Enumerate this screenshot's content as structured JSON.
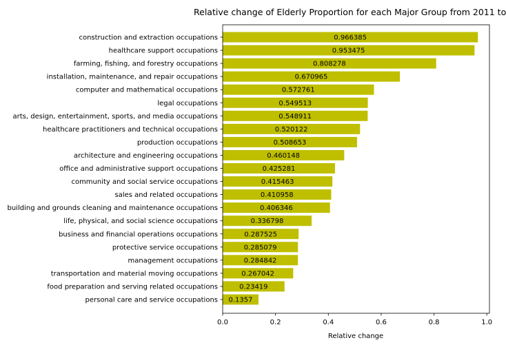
{
  "chart_data": {
    "type": "bar",
    "orientation": "horizontal",
    "title": "Relative change of Elderly Proportion for each Major Group from 2011 to",
    "xlabel": "Relative change",
    "ylabel": "",
    "xlim": [
      0,
      1.01
    ],
    "xticks": [
      0.0,
      0.2,
      0.4,
      0.6,
      0.8,
      1.0
    ],
    "xtick_labels": [
      "0.0",
      "0.2",
      "0.4",
      "0.6",
      "0.8",
      "1.0"
    ],
    "grid": false,
    "bar_color": "#bfbf00",
    "categories": [
      "construction and extraction occupations",
      "healthcare support occupations",
      "farming, fishing, and forestry occupations",
      "installation, maintenance, and repair occupations",
      "computer and mathematical occupations",
      "legal occupations",
      "arts, design, entertainment, sports, and media occupations",
      "healthcare practitioners and technical occupations",
      "production occupations",
      "architecture and engineering occupations",
      "office and administrative support occupations",
      "community and social service occupations",
      "sales and related occupations",
      "building and grounds cleaning and maintenance occupations",
      "life, physical, and social science occupations",
      "business and financial operations occupations",
      "protective service occupations",
      "management occupations",
      "transportation and material moving occupations",
      "food preparation and serving related occupations",
      "personal care and service occupations"
    ],
    "values": [
      0.966385,
      0.953475,
      0.808278,
      0.670965,
      0.572761,
      0.549513,
      0.548911,
      0.520122,
      0.508653,
      0.460148,
      0.425281,
      0.415463,
      0.410958,
      0.406346,
      0.336798,
      0.287525,
      0.285079,
      0.284842,
      0.267042,
      0.23419,
      0.1357
    ],
    "value_labels": [
      "0.966385",
      "0.953475",
      "0.808278",
      "0.670965",
      "0.572761",
      "0.549513",
      "0.548911",
      "0.520122",
      "0.508653",
      "0.460148",
      "0.425281",
      "0.415463",
      "0.410958",
      "0.406346",
      "0.336798",
      "0.287525",
      "0.285079",
      "0.284842",
      "0.267042",
      "0.23419",
      "0.1357"
    ]
  }
}
